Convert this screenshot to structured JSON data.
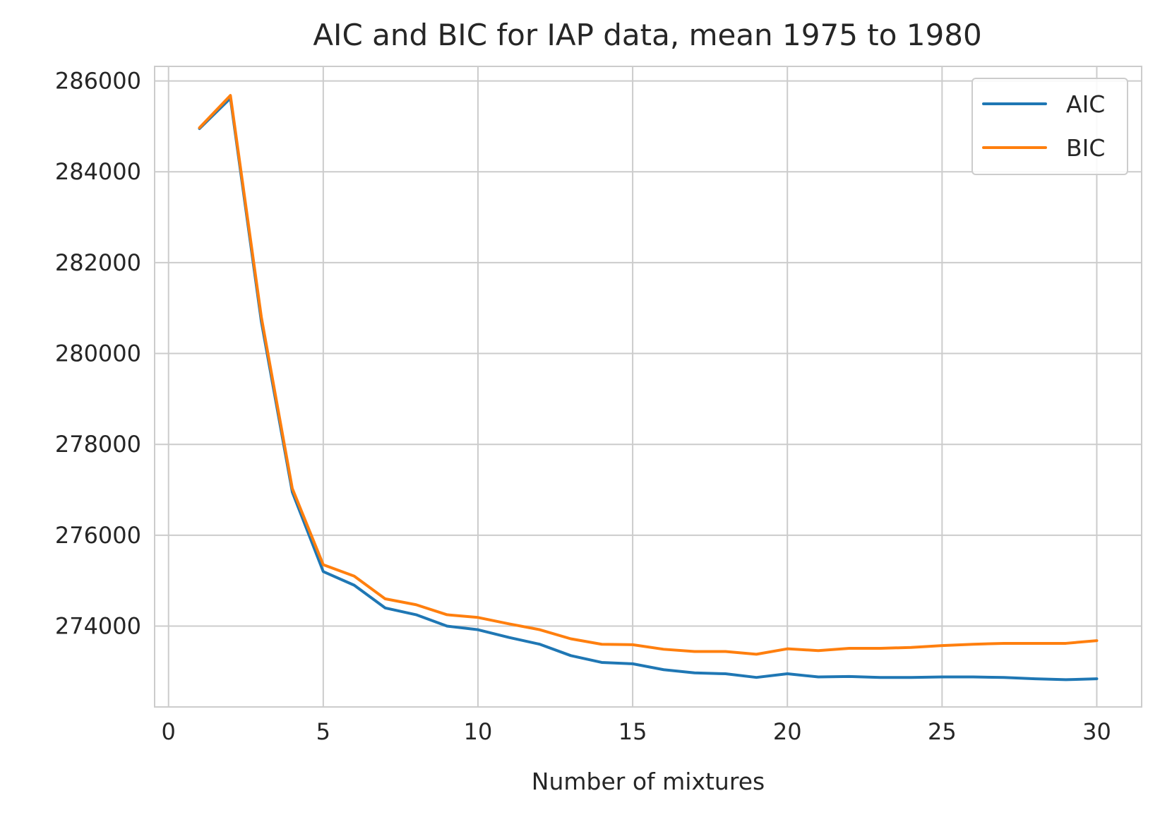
{
  "chart_data": {
    "type": "line",
    "title": "AIC and BIC for IAP data, mean 1975 to 1980",
    "xlabel": "Number of mixtures",
    "ylabel": "",
    "xlim": [
      -0.45,
      31.45
    ],
    "ylim": [
      272220,
      286320
    ],
    "xticks": [
      0,
      5,
      10,
      15,
      20,
      25,
      30
    ],
    "yticks": [
      274000,
      276000,
      278000,
      280000,
      282000,
      284000,
      286000
    ],
    "grid": true,
    "legend_position": "top-right",
    "x": [
      1,
      2,
      3,
      4,
      5,
      6,
      7,
      8,
      9,
      10,
      11,
      12,
      13,
      14,
      15,
      16,
      17,
      18,
      19,
      20,
      21,
      22,
      23,
      24,
      25,
      26,
      27,
      28,
      29,
      30
    ],
    "series": [
      {
        "name": "AIC",
        "color": "#1f77b4",
        "values": [
          284950,
          285620,
          280700,
          276950,
          275200,
          274900,
          274400,
          274250,
          274000,
          273920,
          273750,
          273600,
          273350,
          273200,
          273170,
          273040,
          272970,
          272950,
          272870,
          272950,
          272880,
          272890,
          272870,
          272870,
          272880,
          272880,
          272870,
          272840,
          272820,
          272840
        ]
      },
      {
        "name": "BIC",
        "color": "#ff7f0e",
        "values": [
          284970,
          285680,
          280800,
          277030,
          275350,
          275100,
          274600,
          274470,
          274250,
          274190,
          274050,
          273920,
          273720,
          273600,
          273590,
          273490,
          273440,
          273440,
          273380,
          273500,
          273460,
          273510,
          273510,
          273530,
          273570,
          273600,
          273620,
          273620,
          273620,
          273680
        ]
      }
    ]
  }
}
